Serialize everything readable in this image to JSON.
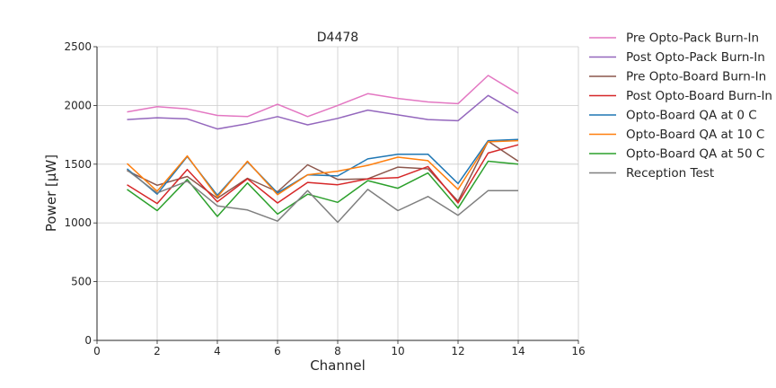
{
  "chart_data": {
    "type": "line",
    "title": "D4478",
    "xlabel": "Channel",
    "ylabel": "Power [μW]",
    "xlim": [
      0,
      16
    ],
    "ylim": [
      0,
      2500
    ],
    "xticks": [
      0,
      2,
      4,
      6,
      8,
      10,
      12,
      14,
      16
    ],
    "yticks": [
      0,
      500,
      1000,
      1500,
      2000,
      2500
    ],
    "xtick_labels": [
      "0",
      "2",
      "4",
      "6",
      "8",
      "10",
      "12",
      "14",
      "16"
    ],
    "ytick_labels": [
      "0",
      "500",
      "1000",
      "1500",
      "2000",
      "2500"
    ],
    "grid": true,
    "legend_position": "outside-right",
    "x": [
      1,
      2,
      3,
      4,
      5,
      6,
      7,
      8,
      9,
      10,
      11,
      12,
      13,
      14
    ],
    "series": [
      {
        "name": "Pre Opto-Pack Burn-In",
        "color": "#e377c2",
        "values": [
          1945,
          1990,
          1970,
          1915,
          1905,
          2010,
          1905,
          2000,
          2100,
          2060,
          2030,
          2015,
          2255,
          2100
        ]
      },
      {
        "name": "Post Opto-Pack Burn-In",
        "color": "#9467bd",
        "values": [
          1880,
          1895,
          1885,
          1800,
          1845,
          1905,
          1835,
          1890,
          1960,
          1920,
          1880,
          1870,
          2085,
          1935
        ]
      },
      {
        "name": "Pre Opto-Board Burn-In",
        "color": "#8c564b",
        "values": [
          1445,
          1320,
          1395,
          1210,
          1380,
          1265,
          1495,
          1370,
          1375,
          1475,
          1460,
          1185,
          1695,
          1525
        ]
      },
      {
        "name": "Post Opto-Board Burn-In",
        "color": "#d62728",
        "values": [
          1325,
          1165,
          1455,
          1180,
          1375,
          1170,
          1345,
          1325,
          1375,
          1385,
          1480,
          1170,
          1595,
          1665
        ]
      },
      {
        "name": "Opto-Board QA at 0 C",
        "color": "#1f77b4",
        "values": [
          1460,
          1245,
          1565,
          1235,
          1520,
          1255,
          1410,
          1400,
          1545,
          1585,
          1585,
          1335,
          1700,
          1710
        ]
      },
      {
        "name": "Opto-Board QA at 10 C",
        "color": "#ff7f0e",
        "values": [
          1505,
          1270,
          1570,
          1220,
          1525,
          1240,
          1410,
          1440,
          1490,
          1560,
          1530,
          1285,
          1690,
          1700
        ]
      },
      {
        "name": "Opto-Board QA at 50 C",
        "color": "#2ca02c",
        "values": [
          1285,
          1105,
          1370,
          1055,
          1340,
          1075,
          1245,
          1175,
          1360,
          1295,
          1425,
          1125,
          1525,
          1500
        ]
      },
      {
        "name": "Reception Test",
        "color": "#7f7f7f",
        "values": [
          1450,
          1255,
          1355,
          1145,
          1110,
          1015,
          1275,
          1005,
          1285,
          1105,
          1225,
          1065,
          1275,
          1275
        ]
      }
    ]
  }
}
